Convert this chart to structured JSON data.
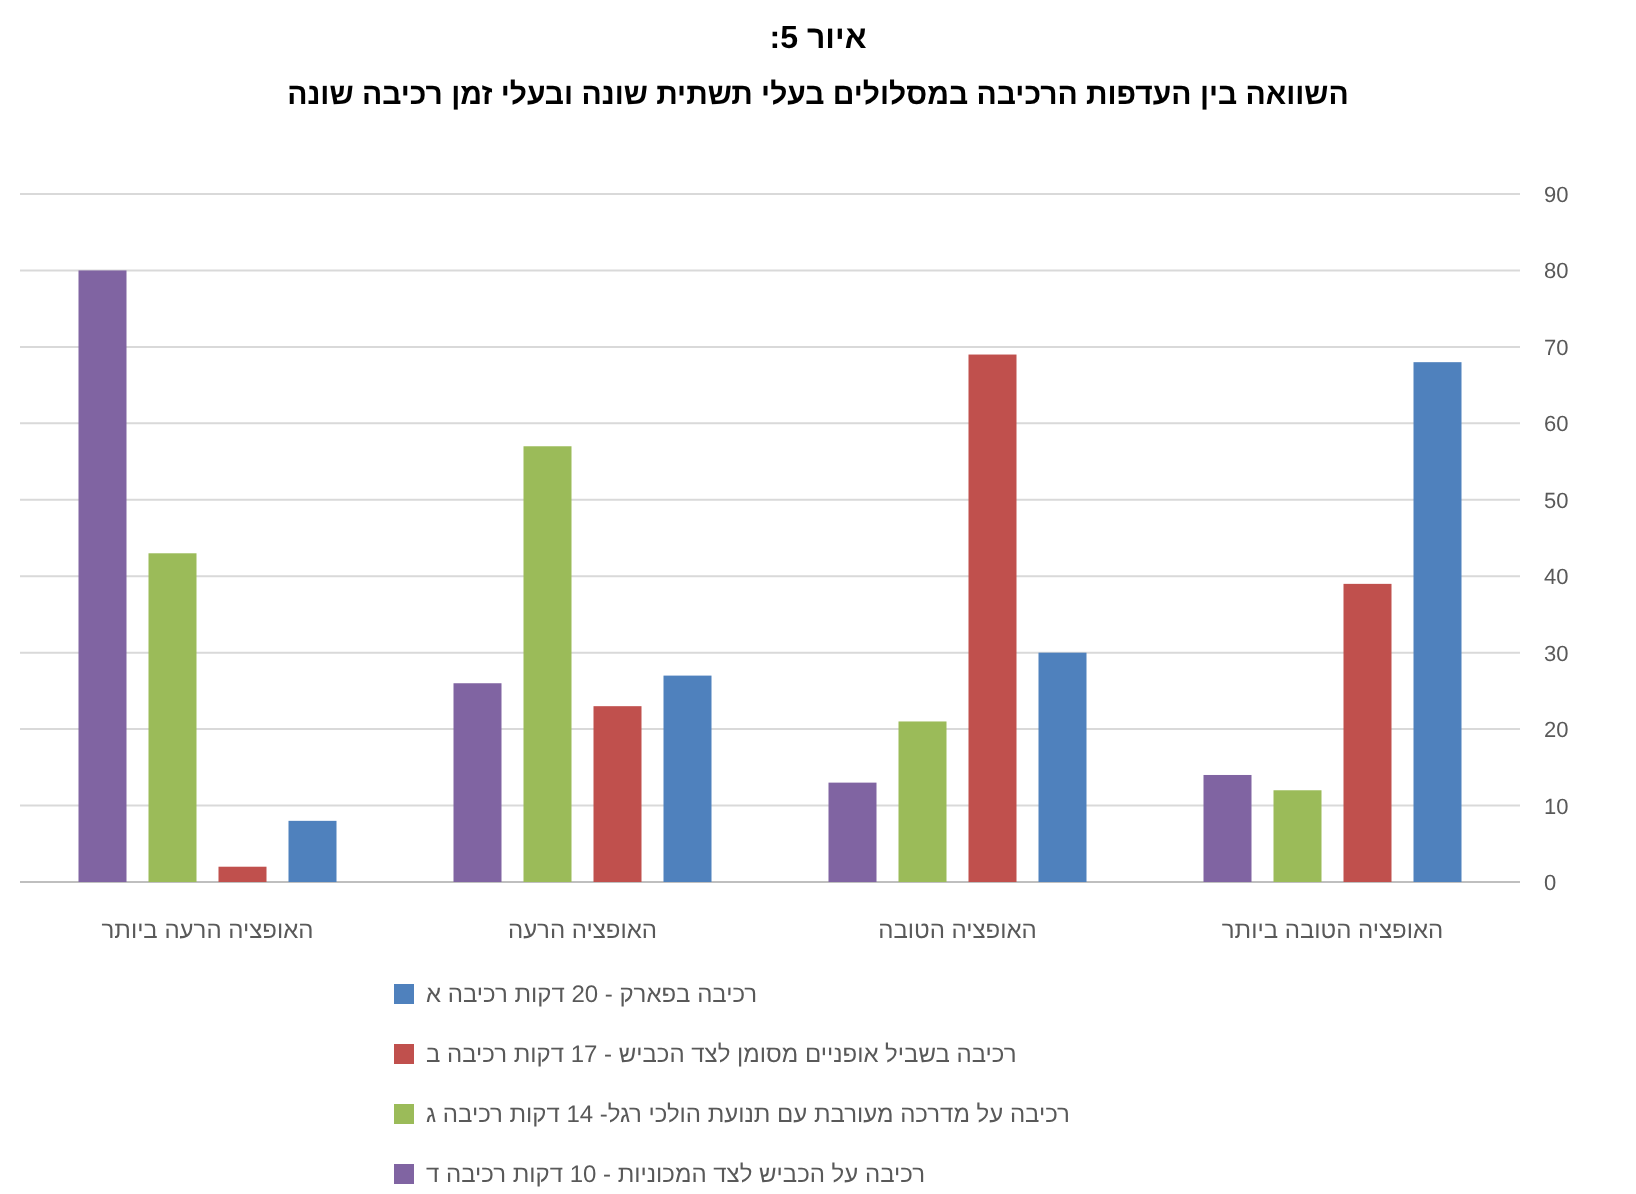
{
  "chart_data": {
    "type": "bar",
    "title": "איור 5:",
    "subtitle": "השוואה בין העדפות הרכיבה במסלולים בעלי תשתית שונה ובעלי זמן רכיבה שונה",
    "categories": [
      "האופציה הרעה ביותר",
      "האופציה הרעה",
      "האופציה הטובה",
      "האופציה הטובה ביותר"
    ],
    "series": [
      {
        "name": "רכיבה בפארק - 20 דקות רכיבה א",
        "color": "#4f81bd",
        "values": [
          8,
          27,
          30,
          68
        ]
      },
      {
        "name": "רכיבה בשביל אופניים מסומן לצד הכביש - 17 דקות רכיבה ב",
        "color": "#c0504d",
        "values": [
          2,
          23,
          69,
          39
        ]
      },
      {
        "name": "רכיבה על מדרכה מעורבת עם תנועת הולכי רגל- 14 דקות רכיבה ג",
        "color": "#9bbb59",
        "values": [
          43,
          57,
          21,
          12
        ]
      },
      {
        "name": "רכיבה על הכביש לצד המכוניות - 10 דקות רכיבה ד",
        "color": "#8064a2",
        "values": [
          80,
          26,
          13,
          14
        ]
      }
    ],
    "ylim": [
      0,
      90
    ],
    "yticks": [
      0,
      10,
      20,
      30,
      40,
      50,
      60,
      70,
      80,
      90
    ],
    "grid": "y",
    "legend": "bottom"
  }
}
